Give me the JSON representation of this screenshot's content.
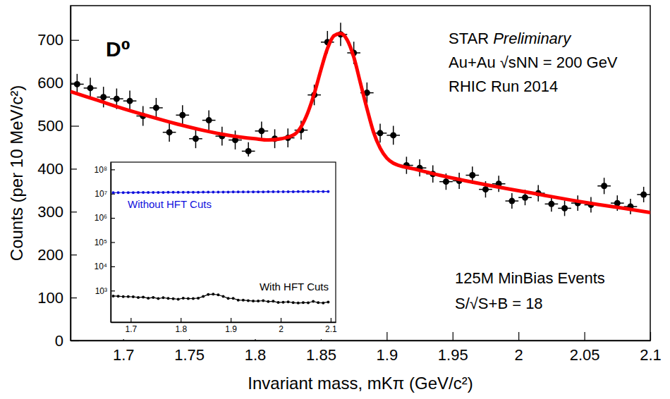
{
  "chart_data": [
    {
      "type": "scatter",
      "title": "D⁰",
      "annotations": [
        "STAR Preliminary",
        "Au+Au √sNN = 200 GeV",
        "RHIC Run 2014",
        "125M MinBias Events",
        "S/√S+B = 18"
      ],
      "x_label": "Invariant mass, mKπ (GeV/c²)",
      "y_label": "Counts (per 10 MeV/c²)",
      "xlim": [
        1.66,
        2.1
      ],
      "xticks": [
        1.7,
        1.75,
        1.8,
        1.85,
        1.9,
        1.95,
        2,
        2.05,
        2.1
      ],
      "ylim": [
        0,
        780
      ],
      "yticks": [
        0,
        100,
        200,
        300,
        400,
        500,
        600,
        700
      ],
      "grid": false,
      "x": [
        1.665,
        1.675,
        1.685,
        1.695,
        1.705,
        1.715,
        1.725,
        1.735,
        1.745,
        1.755,
        1.765,
        1.775,
        1.785,
        1.795,
        1.805,
        1.815,
        1.825,
        1.835,
        1.845,
        1.855,
        1.865,
        1.875,
        1.885,
        1.895,
        1.905,
        1.915,
        1.925,
        1.935,
        1.945,
        1.955,
        1.965,
        1.975,
        1.985,
        1.995,
        2.005,
        2.015,
        2.025,
        2.035,
        2.045,
        2.055,
        2.065,
        2.075,
        2.085,
        2.095
      ],
      "series": [
        {
          "color": "#000000",
          "marker": "circle",
          "values": [
            597,
            588,
            567,
            563,
            558,
            523,
            542,
            485,
            525,
            470,
            513,
            476,
            467,
            441,
            488,
            470,
            472,
            490,
            572,
            695,
            713,
            670,
            577,
            483,
            478,
            408,
            402,
            388,
            370,
            372,
            385,
            352,
            365,
            325,
            333,
            343,
            318,
            308,
            320,
            316,
            360,
            320,
            312,
            340
          ],
          "errors": [
            24,
            24,
            24,
            24,
            24,
            23,
            23,
            22,
            23,
            22,
            23,
            22,
            22,
            21,
            22,
            22,
            22,
            22,
            24,
            26,
            27,
            26,
            24,
            22,
            22,
            20,
            20,
            20,
            19,
            19,
            20,
            19,
            19,
            18,
            18,
            19,
            18,
            18,
            18,
            18,
            19,
            18,
            18,
            18
          ],
          "x_error": 0.005
        },
        {
          "type": "line",
          "color": "#ff0000",
          "line_style": "solid",
          "x": [
            1.66,
            1.68,
            1.7,
            1.72,
            1.74,
            1.76,
            1.78,
            1.8,
            1.81,
            1.82,
            1.83,
            1.835,
            1.84,
            1.845,
            1.85,
            1.855,
            1.86,
            1.865,
            1.87,
            1.875,
            1.88,
            1.885,
            1.89,
            1.895,
            1.9,
            1.905,
            1.91,
            1.92,
            1.94,
            1.96,
            1.98,
            2,
            2.02,
            2.04,
            2.06,
            2.08,
            2.1
          ],
          "values": [
            580,
            560,
            540,
            522,
            505,
            490,
            478,
            470,
            467,
            470,
            480,
            498,
            530,
            575,
            630,
            680,
            710,
            715,
            700,
            660,
            600,
            540,
            485,
            448,
            425,
            413,
            407,
            400,
            385,
            372,
            360,
            349,
            338,
            327,
            317,
            308,
            298
          ]
        }
      ]
    },
    {
      "type": "line",
      "log": "y",
      "xlim": [
        1.66,
        2.11
      ],
      "xticks": [
        1.7,
        1.8,
        1.9,
        2,
        2.1
      ],
      "ylim": [
        50,
        200000000
      ],
      "yticks": [
        {
          "value": 1000,
          "label": "10³"
        },
        {
          "value": 10000,
          "label": "10⁴"
        },
        {
          "value": 100000,
          "label": "10⁵"
        },
        {
          "value": 1000000,
          "label": "10⁶"
        },
        {
          "value": 10000000,
          "label": "10⁷"
        },
        {
          "value": 100000000,
          "label": "10⁸"
        }
      ],
      "x": [
        1.665,
        1.675,
        1.685,
        1.695,
        1.705,
        1.715,
        1.725,
        1.735,
        1.745,
        1.755,
        1.765,
        1.775,
        1.785,
        1.795,
        1.805,
        1.815,
        1.825,
        1.835,
        1.845,
        1.855,
        1.865,
        1.875,
        1.885,
        1.895,
        1.905,
        1.915,
        1.925,
        1.935,
        1.945,
        1.955,
        1.965,
        1.975,
        1.985,
        1.995,
        2.005,
        2.015,
        2.025,
        2.035,
        2.045,
        2.055,
        2.065,
        2.075,
        2.085,
        2.095
      ],
      "series": [
        {
          "name": "Without HFT Cuts",
          "color": "#1010dd",
          "marker": "circle",
          "line_style": "solid",
          "values": [
            11000000,
            11030000,
            11060000,
            11090000,
            11120000,
            11150000,
            11180000,
            11210000,
            11240000,
            11270000,
            11300000,
            11330000,
            11360000,
            11390000,
            11420000,
            11450000,
            11480000,
            11510000,
            11540000,
            11570000,
            11600000,
            11630000,
            11660000,
            11690000,
            11720000,
            11750000,
            11780000,
            11810000,
            11840000,
            11870000,
            11900000,
            11930000,
            11960000,
            11990000,
            12020000,
            12050000,
            12080000,
            12110000,
            12140000,
            12170000,
            12200000,
            12230000,
            12260000,
            12290000
          ]
        },
        {
          "name": "With HFT Cuts",
          "color": "#000000",
          "marker": "circle",
          "line_style": "solid",
          "values": [
            597,
            588,
            567,
            563,
            558,
            523,
            542,
            485,
            525,
            470,
            513,
            476,
            467,
            441,
            488,
            470,
            472,
            490,
            572,
            695,
            713,
            670,
            577,
            483,
            478,
            408,
            402,
            388,
            370,
            372,
            385,
            352,
            365,
            325,
            333,
            343,
            318,
            308,
            320,
            316,
            360,
            320,
            312,
            340
          ]
        }
      ]
    }
  ]
}
